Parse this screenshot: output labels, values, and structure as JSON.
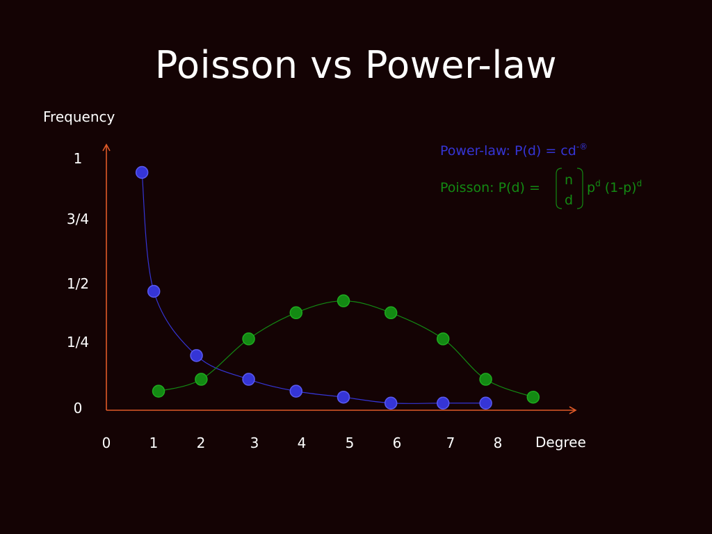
{
  "title": "Poisson vs Power-law",
  "colors": {
    "background": "#140304",
    "axis": "#e05a28",
    "power_law": "#3535d6",
    "poisson": "#138a13",
    "text": "#ffffff"
  },
  "chart_data": {
    "type": "line",
    "title": "Poisson vs Power-law",
    "xlabel": "Degree",
    "ylabel": "Frequency",
    "x_ticks": [
      "0",
      "1",
      "2",
      "3",
      "4",
      "5",
      "6",
      "7",
      "8"
    ],
    "x_tick_values": [
      0,
      1,
      2,
      3,
      4,
      5,
      6,
      7,
      8
    ],
    "y_ticks": [
      {
        "label": "0",
        "value": 0
      },
      {
        "label": "1/4",
        "value": 0.25
      },
      {
        "label": "1/2",
        "value": 0.5
      },
      {
        "label": "3/4",
        "value": 0.75
      },
      {
        "label": "1",
        "value": 1
      }
    ],
    "xlim": [
      0,
      9
    ],
    "ylim": [
      0,
      1.1
    ],
    "grid": false,
    "series": [
      {
        "key": "power_law",
        "color": "#3535d6",
        "points": [
          {
            "x": 0.75,
            "y": 1.0
          },
          {
            "x": 1.0,
            "y": 0.5
          },
          {
            "x": 1.9,
            "y": 0.23
          },
          {
            "x": 3.0,
            "y": 0.13
          },
          {
            "x": 4.0,
            "y": 0.08
          },
          {
            "x": 5.0,
            "y": 0.055
          },
          {
            "x": 6.0,
            "y": 0.03
          },
          {
            "x": 7.1,
            "y": 0.03
          },
          {
            "x": 8.0,
            "y": 0.03
          }
        ]
      },
      {
        "key": "poisson",
        "color": "#138a13",
        "points": [
          {
            "x": 1.1,
            "y": 0.08
          },
          {
            "x": 2.0,
            "y": 0.13
          },
          {
            "x": 3.0,
            "y": 0.3
          },
          {
            "x": 4.0,
            "y": 0.41
          },
          {
            "x": 5.0,
            "y": 0.46
          },
          {
            "x": 6.0,
            "y": 0.41
          },
          {
            "x": 7.1,
            "y": 0.3
          },
          {
            "x": 8.0,
            "y": 0.13
          },
          {
            "x": 9.0,
            "y": 0.055
          }
        ]
      }
    ]
  },
  "legend": {
    "power_law_formula": "Power-law: P(d) = cd",
    "power_law_exponent": "-®",
    "poisson_formula": "Poisson: P(d) =",
    "binom_top": "n",
    "binom_bottom": "d",
    "poisson_p": "p",
    "poisson_p_exp": "d",
    "poisson_rest": " (1-p)",
    "poisson_rest_exp": "d"
  }
}
